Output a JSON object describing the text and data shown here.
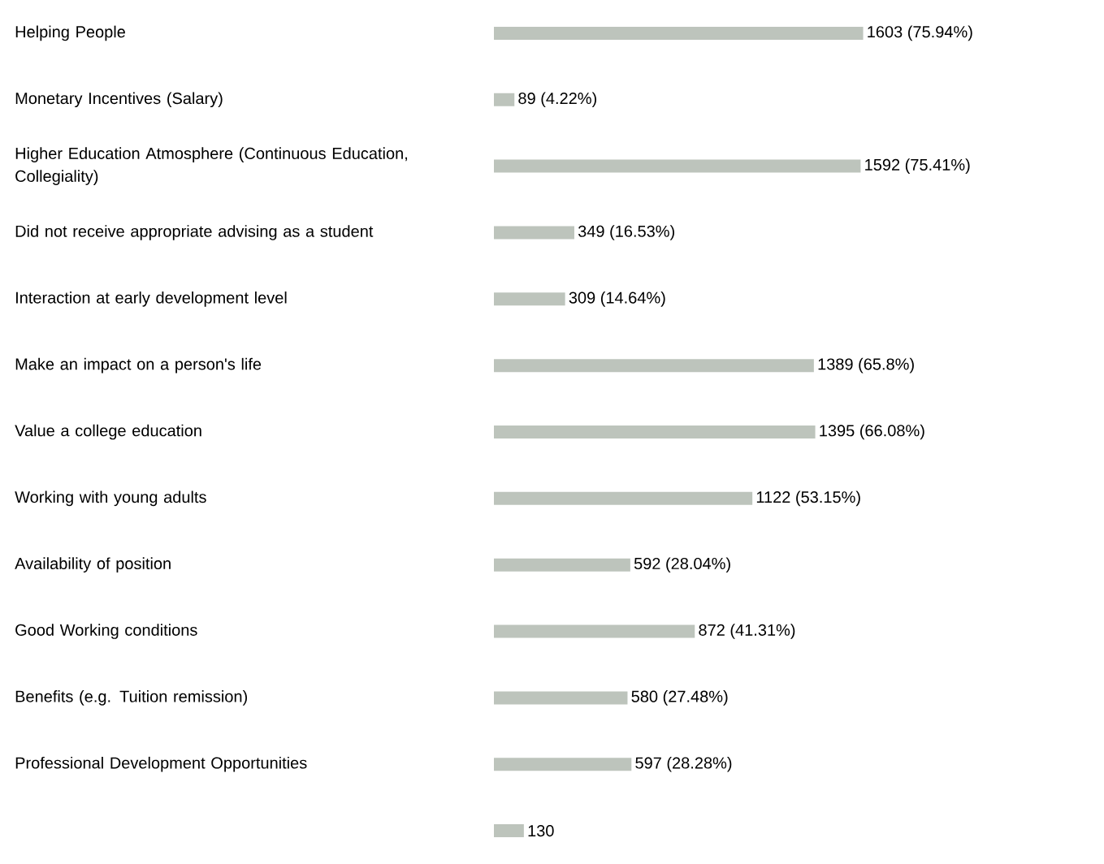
{
  "chart_data": {
    "type": "bar",
    "orientation": "horizontal",
    "color": "#bdc4bc",
    "categories": [
      "Helping People",
      "Monetary Incentives (Salary)",
      "Higher Education Atmosphere (Continuous Education, Collegiality)",
      "Did not receive appropriate advising as a student",
      "Interaction at early development level",
      "Make an impact on a person's life",
      "Value a college education",
      "Working with young adults",
      "Availability of position",
      "Good Working conditions",
      "Benefits (e.g. Tuition remission)",
      "Professional Development Opportunities",
      null
    ],
    "values": [
      1603,
      89,
      1592,
      349,
      309,
      1389,
      1395,
      1122,
      592,
      872,
      580,
      597,
      130
    ],
    "value_labels": [
      "1603 (75.94%)",
      "89 (4.22%)",
      "1592 (75.41%)",
      "349 (16.53%)",
      "309 (14.64%)",
      "1389 (65.8%)",
      "1395 (66.08%)",
      "1122 (53.15%)",
      "592 (28.04%)",
      "872 (41.31%)",
      "580 (27.48%)",
      "597 (28.28%)",
      "130"
    ]
  }
}
